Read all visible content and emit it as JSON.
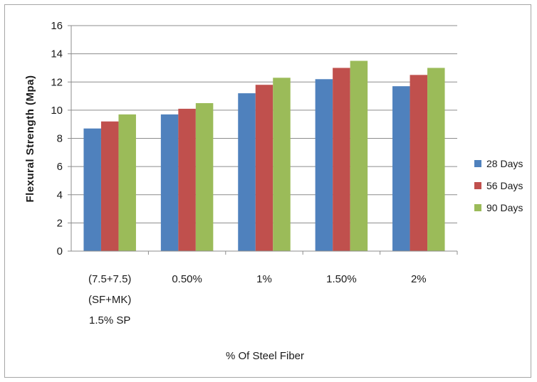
{
  "chart_data": {
    "type": "bar",
    "xlabel": "% Of Steel Fiber",
    "ylabel": "Flexural Strength (Mpa)",
    "ylim": [
      0,
      16
    ],
    "yticks": [
      "0",
      "2",
      "4",
      "6",
      "8",
      "10",
      "12",
      "14",
      "16"
    ],
    "grid": true,
    "legend_position": "right",
    "categories": [
      [
        "(7.5+7.5)",
        "(SF+MK)",
        "1.5% SP"
      ],
      [
        "0.50%"
      ],
      [
        "1%"
      ],
      [
        "1.50%"
      ],
      [
        "2%"
      ]
    ],
    "series": [
      {
        "name": "28 Days",
        "color": "#4f81bd",
        "values": [
          8.7,
          9.7,
          11.2,
          12.2,
          11.7
        ]
      },
      {
        "name": "56 Days",
        "color": "#c0504d",
        "values": [
          9.2,
          10.1,
          11.8,
          13.0,
          12.5
        ]
      },
      {
        "name": "90 Days",
        "color": "#9bbb59",
        "values": [
          9.7,
          10.5,
          12.3,
          13.5,
          13.0
        ]
      }
    ]
  }
}
